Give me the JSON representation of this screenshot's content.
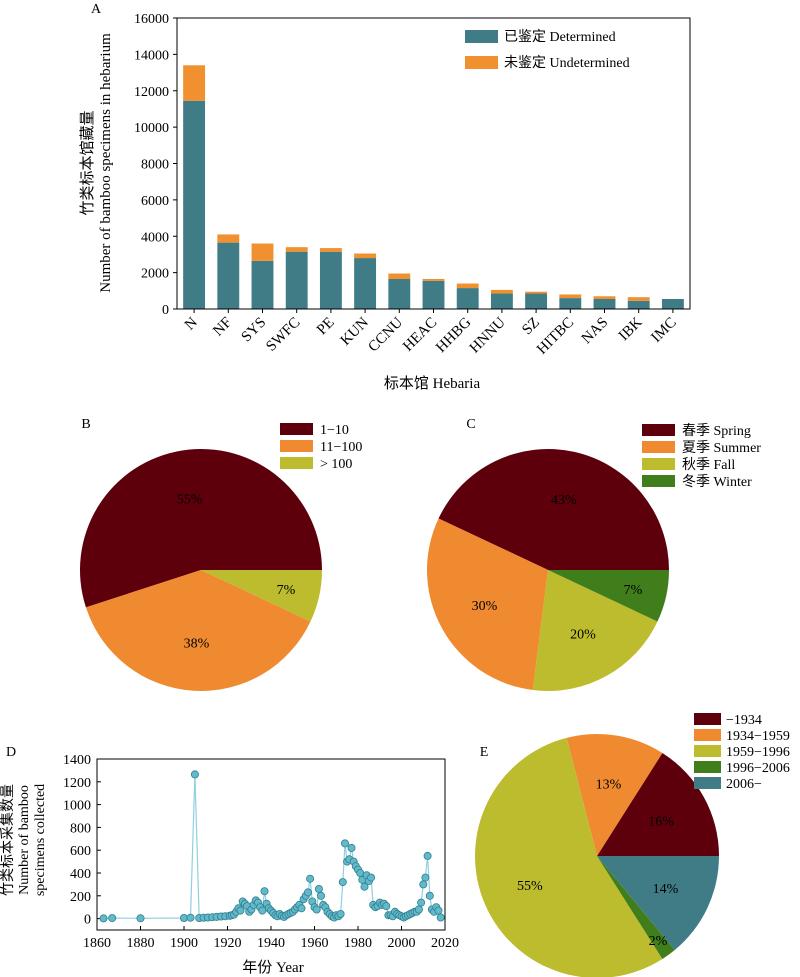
{
  "panels": {
    "a": "A",
    "b": "B",
    "c": "C",
    "d": "D",
    "e": "E"
  },
  "chart_data": [
    {
      "panel": "A",
      "type": "bar",
      "stacked": true,
      "xlabel": "标本馆 Hebaria",
      "ylabel_line1": "竹类标本馆藏量",
      "ylabel_line2": "Number of bamboo specimens in hebarium",
      "ylim": [
        0,
        16000
      ],
      "yticks": [
        0,
        2000,
        4000,
        6000,
        8000,
        10000,
        12000,
        14000,
        16000
      ],
      "categories": [
        "N",
        "NF",
        "SYS",
        "SWFC",
        "PE",
        "KUN",
        "CCNU",
        "HEAC",
        "HHBG",
        "HNNU",
        "SZ",
        "HITBC",
        "NAS",
        "IBK",
        "IMC"
      ],
      "series": [
        {
          "name": "已鉴定 Determined",
          "color": "#3f7c85",
          "values": [
            11450,
            3650,
            2650,
            3150,
            3150,
            2800,
            1650,
            1550,
            1150,
            850,
            850,
            600,
            550,
            450,
            550
          ]
        },
        {
          "name": "未鉴定 Undetermined",
          "color": "#f0902f",
          "values": [
            1950,
            450,
            950,
            250,
            200,
            250,
            300,
            100,
            250,
            200,
            100,
            200,
            150,
            200,
            0
          ]
        }
      ],
      "legend": "top-right",
      "grid": false
    },
    {
      "panel": "B",
      "type": "pie",
      "labels": [
        "1−10",
        "11−100",
        "> 100"
      ],
      "values": [
        55,
        38,
        7
      ],
      "value_labels": [
        "55%",
        "38%",
        "7%"
      ],
      "colors": [
        "#5e000c",
        "#f08a30",
        "#bcbc2e"
      ],
      "legend": "top-right"
    },
    {
      "panel": "C",
      "type": "pie",
      "labels": [
        "春季 Spring",
        "夏季 Summer",
        "秋季 Fall",
        "冬季 Winter"
      ],
      "values": [
        43,
        30,
        20,
        7
      ],
      "value_labels": [
        "43%",
        "30%",
        "20%",
        "7%"
      ],
      "colors": [
        "#5e000c",
        "#f08a30",
        "#bcbc2e",
        "#407e1c"
      ],
      "legend": "top-right"
    },
    {
      "panel": "D",
      "type": "line",
      "xlabel": "年份 Year",
      "ylabel_line1": "竹类标本采集数量",
      "ylabel_line2": "Number of bamboo",
      "ylabel_line3": "specimens collected",
      "xlim": [
        1860,
        2020
      ],
      "ylim": [
        -100,
        1400
      ],
      "xticks": [
        1860,
        1880,
        1900,
        1920,
        1940,
        1960,
        1980,
        2000,
        2020
      ],
      "yticks": [
        0,
        200,
        400,
        600,
        800,
        1000,
        1200,
        1400
      ],
      "color": "#8fd0e0",
      "grid": false,
      "x": [
        1863,
        1867,
        1880,
        1900,
        1903,
        1905,
        1907,
        1909,
        1911,
        1913,
        1915,
        1917,
        1919,
        1921,
        1922,
        1923,
        1924,
        1925,
        1926,
        1927,
        1928,
        1929,
        1930,
        1931,
        1932,
        1933,
        1934,
        1935,
        1936,
        1937,
        1938,
        1939,
        1940,
        1941,
        1942,
        1943,
        1944,
        1945,
        1946,
        1947,
        1948,
        1949,
        1950,
        1951,
        1952,
        1953,
        1954,
        1955,
        1956,
        1957,
        1958,
        1959,
        1960,
        1961,
        1962,
        1963,
        1964,
        1965,
        1966,
        1967,
        1968,
        1969,
        1970,
        1971,
        1972,
        1973,
        1974,
        1975,
        1976,
        1977,
        1978,
        1979,
        1980,
        1981,
        1982,
        1983,
        1984,
        1985,
        1986,
        1987,
        1988,
        1989,
        1990,
        1991,
        1992,
        1993,
        1994,
        1995,
        1996,
        1997,
        1998,
        1999,
        2000,
        2001,
        2002,
        2003,
        2004,
        2005,
        2006,
        2007,
        2008,
        2009,
        2010,
        2011,
        2012,
        2013,
        2014,
        2015,
        2016,
        2017,
        2018
      ],
      "y": [
        2,
        4,
        3,
        5,
        8,
        1265,
        5,
        8,
        10,
        12,
        15,
        18,
        20,
        25,
        30,
        35,
        60,
        90,
        70,
        150,
        130,
        110,
        60,
        80,
        120,
        160,
        140,
        100,
        70,
        240,
        130,
        90,
        70,
        50,
        30,
        20,
        40,
        25,
        15,
        30,
        40,
        50,
        60,
        80,
        100,
        120,
        90,
        170,
        200,
        230,
        350,
        150,
        100,
        80,
        260,
        200,
        120,
        100,
        60,
        40,
        20,
        10,
        30,
        20,
        40,
        320,
        660,
        500,
        520,
        620,
        500,
        460,
        430,
        400,
        340,
        280,
        380,
        330,
        360,
        120,
        100,
        110,
        140,
        120,
        130,
        110,
        30,
        30,
        20,
        60,
        40,
        30,
        20,
        10,
        20,
        30,
        40,
        50,
        60,
        60,
        80,
        140,
        300,
        360,
        550,
        200,
        80,
        60,
        100,
        70,
        10
      ]
    },
    {
      "panel": "E",
      "type": "pie",
      "labels": [
        "−1934",
        "1934−1959",
        "1959−1996",
        "1996−2006",
        "2006−"
      ],
      "values": [
        16,
        13,
        55,
        2,
        14
      ],
      "value_labels": [
        "16%",
        "13%",
        "55%",
        "2%",
        "14%"
      ],
      "colors": [
        "#5e000c",
        "#f08a30",
        "#bcbc2e",
        "#407e1c",
        "#3f7c85"
      ],
      "legend": "top-right"
    }
  ]
}
